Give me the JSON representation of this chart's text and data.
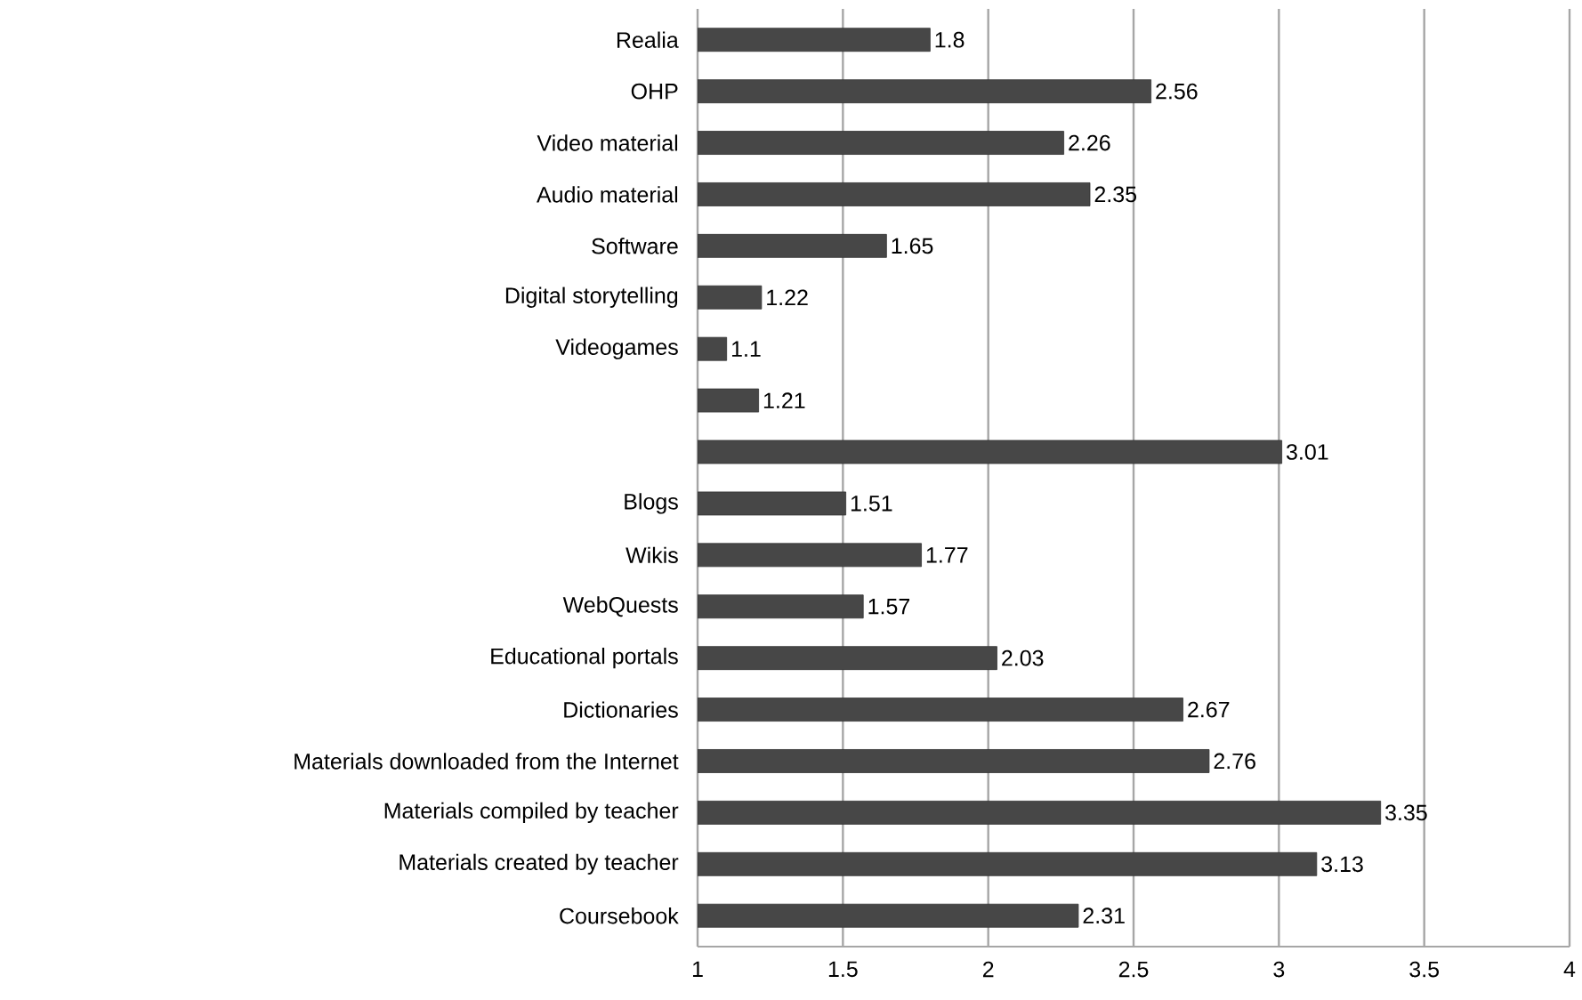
{
  "chart_data": {
    "type": "bar",
    "orientation": "horizontal",
    "categories": [
      "Realia",
      "OHP",
      "Video material",
      "Audio material",
      "Software",
      "Digital storytelling",
      "Videogames",
      null,
      null,
      "Blogs",
      "Wikis",
      "WebQuests",
      "Educational portals",
      "Dictionaries",
      "Materials downloaded from the Internet",
      "Materials compiled by teacher",
      "Materials created by teacher",
      "Coursebook"
    ],
    "values": [
      1.8,
      2.56,
      2.26,
      2.35,
      1.65,
      1.22,
      1.1,
      1.21,
      3.01,
      1.51,
      1.77,
      1.57,
      2.03,
      2.67,
      2.76,
      3.35,
      3.13,
      2.31
    ],
    "color": "#474747",
    "xlim": [
      1,
      4
    ],
    "xticks": [
      1,
      1.5,
      2,
      2.5,
      3,
      3.5,
      4
    ],
    "grid": "x",
    "data_labels": true
  }
}
